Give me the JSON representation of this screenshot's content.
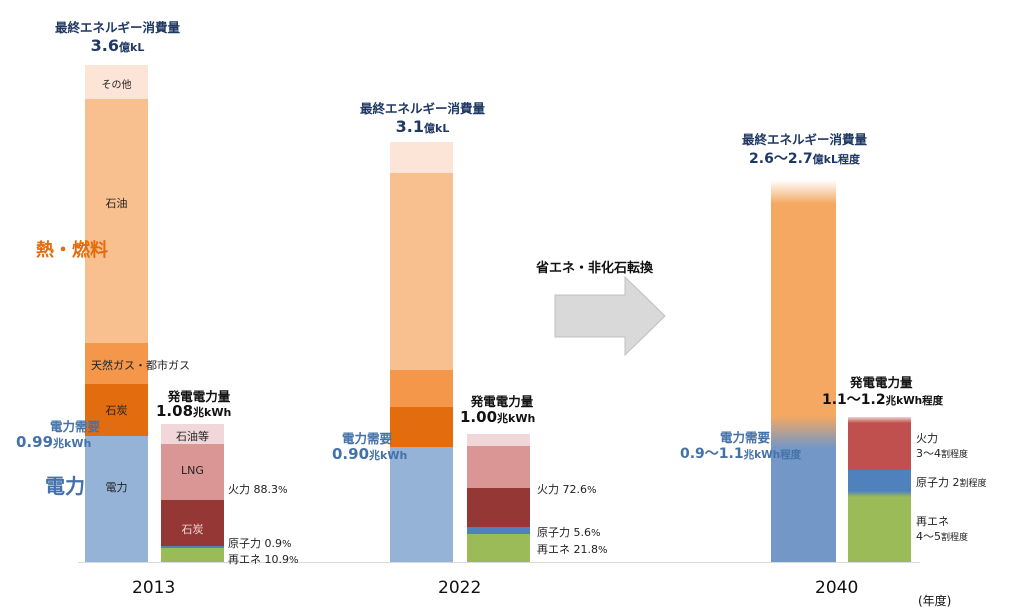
{
  "chart_data": {
    "type": "bar",
    "title": "",
    "xlabel": "(年度)",
    "categories": [
      "2013",
      "2022",
      "2040"
    ],
    "colors": {
      "other": "#fce4d6",
      "oil": "#f9c08f",
      "gas": "#f4974a",
      "coal_fuel": "#e36c0f",
      "electricity": "#95b3d7",
      "electricity_2040": "#7397c6",
      "oil_etc": "#f2d7da",
      "lng": "#d99694",
      "coal_power": "#953735",
      "nuclear": "#4f81bd",
      "renewable": "#9bbb59",
      "thermal_2040": "#c0504d",
      "fuel_2040": "#f4a862"
    },
    "groups": [
      {
        "year": "2013",
        "energy_title": "最終エネルギー消費量",
        "energy_value": "3.6",
        "energy_unit": "億kL",
        "energy_segments": [
          {
            "name": "電力",
            "share_of_total": 0.255
          },
          {
            "name": "石炭",
            "share_of_total": 0.105
          },
          {
            "name": "天然ガス・都市ガス",
            "share_of_total": 0.083
          },
          {
            "name": "石油",
            "share_of_total": 0.49
          },
          {
            "name": "その他",
            "share_of_total": 0.067
          }
        ],
        "demand_title": "電力需要",
        "demand_value": "0.99",
        "demand_unit": "兆kWh",
        "gen_title": "発電電力量",
        "gen_value": "1.08",
        "gen_unit": "兆kWh",
        "gen_segments": [
          {
            "name": "再エネ",
            "percent": 10.9
          },
          {
            "name": "原子力",
            "percent": 0.9
          },
          {
            "name": "石炭",
            "percent": 33.0
          },
          {
            "name": "LNG",
            "percent": 40.0
          },
          {
            "name": "石油等",
            "percent": 15.3
          }
        ],
        "gen_labels": {
          "thermal": "火力",
          "thermal_value": "88.3",
          "nuclear": "原子力",
          "nuclear_value": "0.9",
          "renewable": "再エネ",
          "renewable_value": "10.9",
          "percent_sign": "%"
        }
      },
      {
        "year": "2022",
        "energy_title": "最終エネルギー消費量",
        "energy_value": "3.1",
        "energy_unit": "億kL",
        "energy_segments": [
          {
            "name": "電力",
            "share_of_total": 0.274
          },
          {
            "name": "石炭",
            "share_of_total": 0.095
          },
          {
            "name": "天然ガス・都市ガス",
            "share_of_total": 0.088
          },
          {
            "name": "石油",
            "share_of_total": 0.469
          },
          {
            "name": "その他",
            "share_of_total": 0.074
          }
        ],
        "demand_title": "電力需要",
        "demand_value": "0.90",
        "demand_unit": "兆kWh",
        "gen_title": "発電電力量",
        "gen_value": "1.00",
        "gen_unit": "兆kWh",
        "gen_segments": [
          {
            "name": "再エネ",
            "percent": 21.8
          },
          {
            "name": "原子力",
            "percent": 5.6
          },
          {
            "name": "石炭",
            "percent": 30.5
          },
          {
            "name": "LNG",
            "percent": 33.5
          },
          {
            "name": "石油等",
            "percent": 8.6
          }
        ],
        "gen_labels": {
          "thermal": "火力",
          "thermal_value": "72.6",
          "nuclear": "原子力",
          "nuclear_value": "5.6",
          "renewable": "再エネ",
          "renewable_value": "21.8",
          "percent_sign": "%"
        }
      },
      {
        "year": "2040",
        "energy_title": "最終エネルギー消費量",
        "energy_value": "2.6〜2.7",
        "energy_unit": "億kL程度",
        "demand_title": "電力需要",
        "demand_value": "0.9〜1.1",
        "demand_unit": "兆kWh程度",
        "gen_title": "発電電力量",
        "gen_value": "1.1〜1.2",
        "gen_unit": "兆kWh程度",
        "gen_segments": [
          {
            "name": "再エネ",
            "percent": 45
          },
          {
            "name": "原子力",
            "percent": 20
          },
          {
            "name": "火力",
            "percent": 35
          }
        ],
        "gen_labels": {
          "thermal": "火力",
          "thermal_value": "3〜4",
          "nuclear": "原子力",
          "nuclear_value": "2",
          "renewable": "再エネ",
          "renewable_value": "4〜5",
          "ratio_unit": "割程度"
        }
      }
    ],
    "side_labels": {
      "heat_fuel": "熱・燃料",
      "power": "電力"
    },
    "transition_label": "省エネ・非化石転換"
  }
}
